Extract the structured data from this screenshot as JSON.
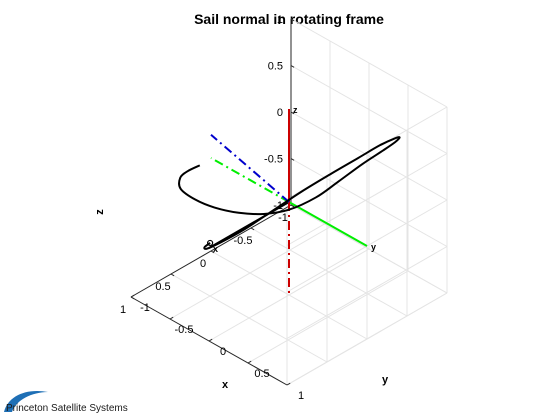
{
  "chart_data": {
    "type": "line",
    "projection": "3d",
    "title": "Sail normal in rotating frame",
    "xlabel": "x",
    "ylabel": "y",
    "zlabel": "z",
    "xlim": [
      -1,
      1
    ],
    "ylim": [
      -1,
      1
    ],
    "zlim": [
      -1,
      1
    ],
    "grid": true,
    "x_ticks": [
      "-1",
      "-0.5",
      "0",
      "0.5",
      "1"
    ],
    "y_ticks": [
      "-1",
      "-0.5",
      "0",
      "0.5",
      "1"
    ],
    "z_ticks": [
      "-1",
      "-0.5",
      "0",
      "0.5",
      "1"
    ],
    "series": [
      {
        "line_color": "#000000",
        "end_marker": "o",
        "x": [
          0.15,
          0.35,
          0.55,
          0.75,
          0.88,
          0.95,
          0.96,
          0.92,
          0.82,
          0.6,
          0.35,
          0.05,
          -0.25,
          -0.5,
          -0.72,
          -0.88,
          -0.96,
          -0.96,
          -0.88,
          -0.72,
          -0.52,
          -0.28,
          -0.08,
          0.06,
          0.1,
          0.06
        ],
        "y": [
          -0.99,
          -0.94,
          -0.83,
          -0.62,
          -0.3,
          0.02,
          0.34,
          0.62,
          0.84,
          0.96,
          0.99,
          0.99,
          0.95,
          0.85,
          0.68,
          0.45,
          0.18,
          -0.1,
          -0.36,
          -0.58,
          -0.74,
          -0.86,
          -0.95,
          -0.99,
          -0.98,
          -0.95
        ],
        "z": [
          0.0,
          0.06,
          0.14,
          0.22,
          0.32,
          0.42,
          0.52,
          0.62,
          0.72,
          0.8,
          0.86,
          0.9,
          0.88,
          0.8,
          0.66,
          0.46,
          0.22,
          -0.05,
          -0.3,
          -0.52,
          -0.7,
          -0.84,
          -0.92,
          -0.94,
          -0.9,
          -0.86
        ]
      }
    ],
    "frame_axes": [
      {
        "label": "x",
        "color": "#000000",
        "from": [
          0,
          0,
          0
        ],
        "to": [
          1,
          0,
          0
        ],
        "negative_dashdot": false
      },
      {
        "label": "y",
        "color": "#00ee00",
        "from": [
          0,
          0,
          0
        ],
        "to": [
          0,
          1,
          0
        ],
        "negative_dashdot": true
      },
      {
        "label": "z",
        "color": "#cc0000",
        "from": [
          0,
          0,
          0
        ],
        "to": [
          0,
          0,
          1
        ],
        "negative_dashdot": true
      },
      {
        "label": "",
        "color": "#0000cc",
        "from": [
          0,
          0,
          0
        ],
        "to": [
          0,
          -1,
          0.25
        ],
        "dashdot_only": true
      }
    ]
  },
  "logo": {
    "text": "Princeton Satellite Systems"
  }
}
